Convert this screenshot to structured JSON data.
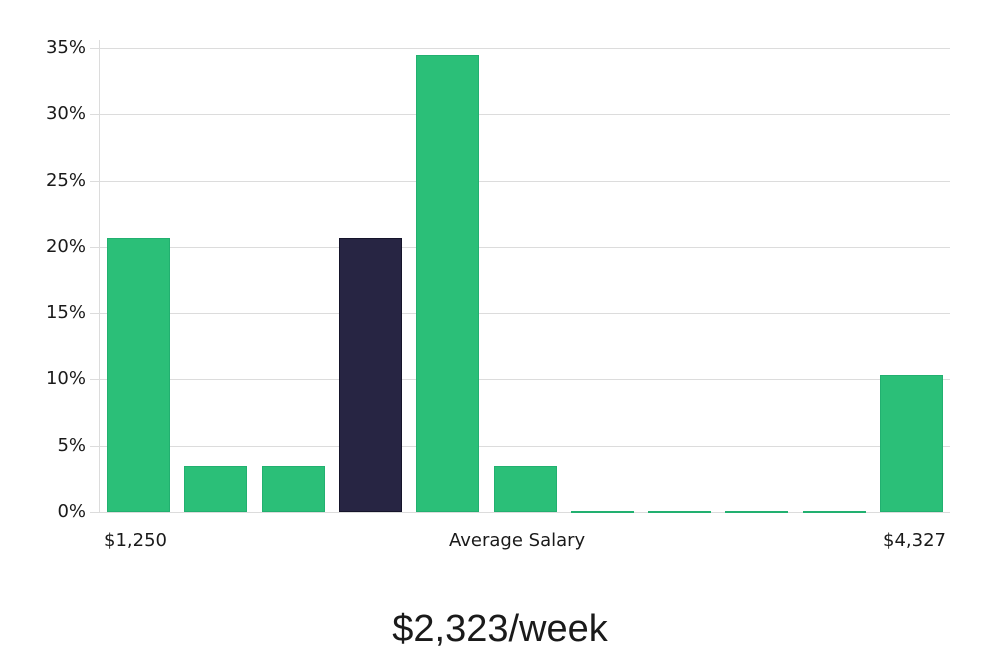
{
  "chart_data": {
    "type": "bar",
    "title": "",
    "xlabel": "Average Salary",
    "ylabel": "",
    "ylim": [
      0,
      35
    ],
    "y_ticks": [
      "0%",
      "5%",
      "10%",
      "15%",
      "20%",
      "25%",
      "30%",
      "35%"
    ],
    "x_min_label": "$1,250",
    "x_max_label": "$4,327",
    "categories": [
      "bin1",
      "bin2",
      "bin3",
      "bin4",
      "bin5",
      "bin6",
      "bin7",
      "bin8",
      "bin9",
      "bin10",
      "bin11"
    ],
    "values": [
      20.69,
      3.45,
      3.45,
      20.69,
      34.48,
      3.45,
      0,
      0,
      0,
      0,
      10.34
    ],
    "highlighted_index": 3,
    "colors": {
      "bar": "#2bbf78",
      "highlight": "#272543",
      "grid": "#dcdcdc"
    },
    "grid": true,
    "legend": null
  },
  "labels": {
    "x_min": "$1,250",
    "x_center": "Average Salary",
    "x_max": "$4,327",
    "summary": "$2,323/week"
  }
}
